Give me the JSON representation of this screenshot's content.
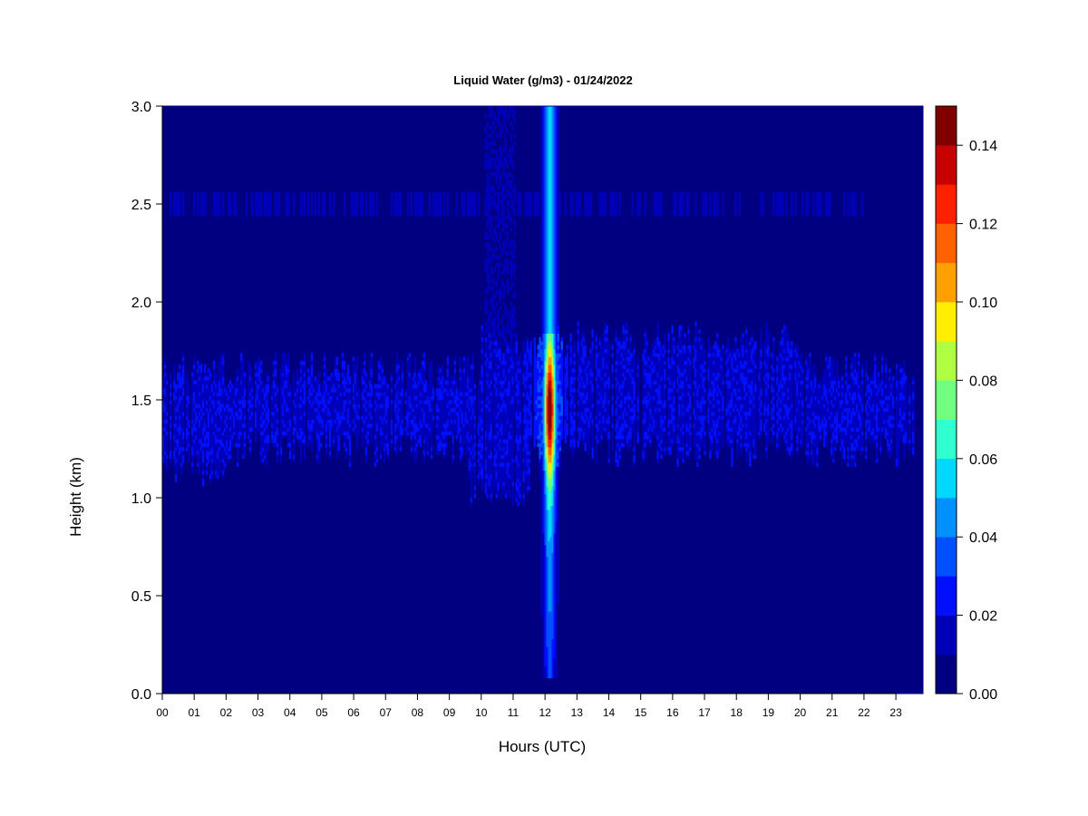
{
  "chart_data": {
    "type": "heatmap",
    "title": "Liquid Water (g/m3) - 01/24/2022",
    "xlabel": "Hours (UTC)",
    "ylabel": "Height (km)",
    "xlim": [
      0,
      23.85
    ],
    "ylim": [
      0,
      3.0
    ],
    "x_ticks": [
      "00",
      "01",
      "02",
      "03",
      "04",
      "05",
      "06",
      "07",
      "08",
      "09",
      "10",
      "11",
      "12",
      "13",
      "14",
      "15",
      "16",
      "17",
      "18",
      "19",
      "20",
      "21",
      "22",
      "23"
    ],
    "y_ticks": [
      "0.0",
      "0.5",
      "1.0",
      "1.5",
      "2.0",
      "2.5",
      "3.0"
    ],
    "colorbar": {
      "ticks": [
        "0.00",
        "0.02",
        "0.04",
        "0.06",
        "0.08",
        "0.10",
        "0.12",
        "0.14"
      ],
      "range": [
        0,
        0.15
      ],
      "levels": [
        0.0,
        0.01,
        0.02,
        0.03,
        0.04,
        0.05,
        0.06,
        0.07,
        0.08,
        0.09,
        0.1,
        0.11,
        0.12,
        0.13,
        0.14,
        0.15
      ],
      "colors": [
        "#000080",
        "#0000b8",
        "#0010ff",
        "#0050ff",
        "#0090ff",
        "#00d8ff",
        "#30ffd0",
        "#70ff80",
        "#b0ff40",
        "#ffee00",
        "#ffa000",
        "#ff6000",
        "#ff2000",
        "#c80000",
        "#800000"
      ]
    },
    "features": [
      {
        "name": "cloud layer 1.25-1.65 km",
        "x": [
          0,
          23.6
        ],
        "y": [
          1.25,
          1.65
        ],
        "value": 0.02
      },
      {
        "name": "cloud layer 2.5 km",
        "x": [
          0.2,
          22.0
        ],
        "y": [
          2.45,
          2.55
        ],
        "value": 0.015
      },
      {
        "name": "peak column",
        "x": [
          11.9,
          12.45
        ],
        "y": [
          0.1,
          3.0
        ],
        "peak_value": 0.14,
        "peak_y": 1.5
      }
    ]
  }
}
